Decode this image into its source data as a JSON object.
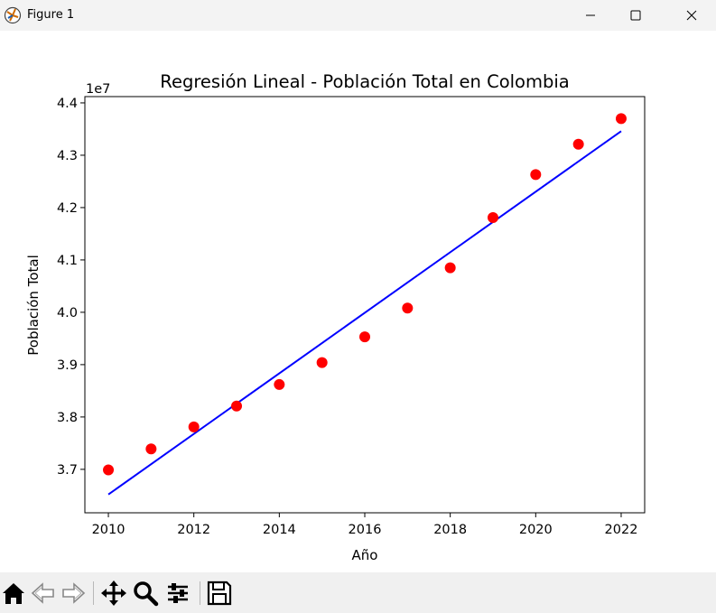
{
  "window": {
    "title": "Figure 1",
    "controls": [
      "minimize-icon",
      "maximize-icon",
      "close-icon"
    ]
  },
  "toolbar": {
    "buttons": [
      "home-icon",
      "back-icon",
      "forward-icon",
      "pan-icon",
      "zoom-icon",
      "configure-subplots-icon",
      "save-icon"
    ]
  },
  "chart_data": {
    "type": "scatter",
    "title": "Regresión Lineal - Población Total en Colombia",
    "xlabel": "Año",
    "ylabel": "Población Total",
    "offset_label": "1e7",
    "xlim": [
      2009.45,
      2022.55
    ],
    "ylim": [
      3.617,
      4.412
    ],
    "xticks": [
      2010,
      2012,
      2014,
      2016,
      2018,
      2020,
      2022
    ],
    "xtick_labels": [
      "2010",
      "2012",
      "2014",
      "2016",
      "2018",
      "2020",
      "2022"
    ],
    "yticks": [
      3.7,
      3.8,
      3.9,
      4.0,
      4.1,
      4.2,
      4.3,
      4.4
    ],
    "ytick_labels": [
      "3.7",
      "3.8",
      "3.9",
      "4.0",
      "4.1",
      "4.2",
      "4.3",
      "4.4"
    ],
    "grid": false,
    "series": [
      {
        "kind": "scatter",
        "color": "#ff0000",
        "x": [
          2010,
          2011,
          2012,
          2013,
          2014,
          2015,
          2016,
          2017,
          2018,
          2019,
          2020,
          2021,
          2022
        ],
        "y": [
          3.699,
          3.739,
          3.781,
          3.821,
          3.862,
          3.904,
          3.953,
          4.008,
          4.085,
          4.181,
          4.263,
          4.321,
          4.37
        ]
      },
      {
        "kind": "line",
        "color": "#0000ff",
        "x": [
          2010,
          2022
        ],
        "y": [
          3.652,
          4.346
        ]
      }
    ]
  }
}
